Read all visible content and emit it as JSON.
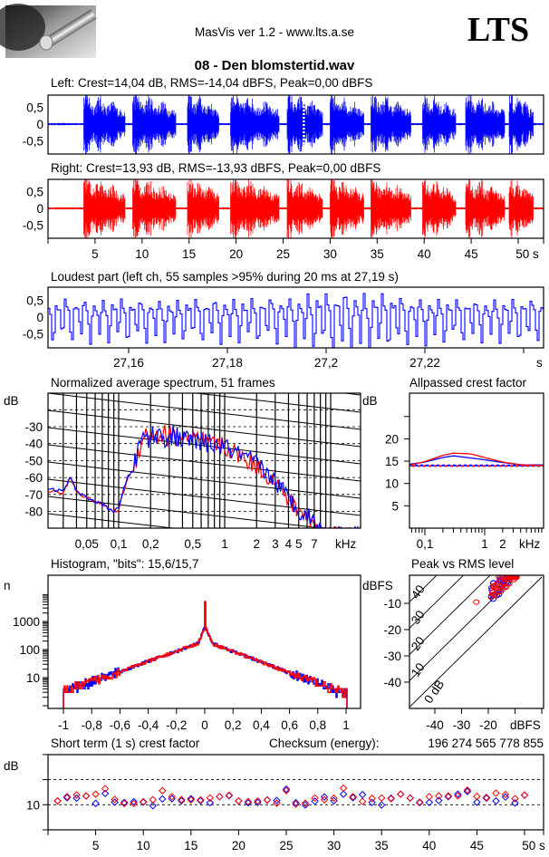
{
  "header": {
    "app_title": "MasVis ver 1.2 - www.lts.a.se",
    "brand": "LTS",
    "file_name": "08 - Den blomstertid.wav"
  },
  "colors": {
    "left": "#0000ff",
    "right": "#ff0000",
    "frame": "#000000"
  },
  "chart_data": [
    {
      "id": "left",
      "type": "line",
      "title": "Left: Crest=14,04 dB, RMS=-14,04 dBFS, Peak=0,00 dBFS",
      "yticks": [
        {
          "v": 0.5,
          "label": "0,5"
        },
        {
          "v": 0,
          "label": "0"
        },
        {
          "v": -0.5,
          "label": "-0,5"
        }
      ],
      "xlim": [
        0,
        52.7
      ],
      "ylim": [
        -1,
        1
      ],
      "loudest_marker_s": 27.19,
      "phrases_s": [
        [
          3.8,
          8.2
        ],
        [
          9,
          13.6
        ],
        [
          14.8,
          18.2
        ],
        [
          19.4,
          24.6
        ],
        [
          25.4,
          29.2
        ],
        [
          30,
          33.6
        ],
        [
          34.3,
          38.6
        ],
        [
          39.8,
          43.4
        ],
        [
          44.4,
          48.6
        ],
        [
          49,
          51.6
        ]
      ]
    },
    {
      "id": "right",
      "type": "line",
      "title": "Right: Crest=13,93 dB, RMS=-13,93 dBFS, Peak=0,00 dBFS",
      "yticks": [
        {
          "v": 0.5,
          "label": "0,5"
        },
        {
          "v": 0,
          "label": "0"
        },
        {
          "v": -0.5,
          "label": "-0,5"
        }
      ],
      "xticks": [
        {
          "v": 5,
          "label": "5"
        },
        {
          "v": 10,
          "label": "10"
        },
        {
          "v": 15,
          "label": "15"
        },
        {
          "v": 20,
          "label": "20"
        },
        {
          "v": 25,
          "label": "25"
        },
        {
          "v": 30,
          "label": "30"
        },
        {
          "v": 35,
          "label": "35"
        },
        {
          "v": 40,
          "label": "40"
        },
        {
          "v": 45,
          "label": "45"
        },
        {
          "v": 50,
          "label": "50 s"
        }
      ],
      "xlim": [
        0,
        52.7
      ],
      "ylim": [
        -1,
        1
      ]
    },
    {
      "id": "loudest",
      "type": "line",
      "title": "Loudest part (left  ch, 55 samples >95% during 20 ms at 27,19 s)",
      "yticks": [
        {
          "v": 0.5,
          "label": "0,5"
        },
        {
          "v": 0,
          "label": "0"
        },
        {
          "v": -0.5,
          "label": "-0,5"
        }
      ],
      "xticks": [
        {
          "v": 27.16,
          "label": "27,16"
        },
        {
          "v": 27.18,
          "label": "27,18"
        },
        {
          "v": 27.2,
          "label": "27,2"
        },
        {
          "v": 27.22,
          "label": "27,22"
        }
      ],
      "xunit": "s",
      "xlim": [
        27.144,
        27.244
      ],
      "ylim": [
        -1,
        1
      ]
    },
    {
      "id": "spectrum",
      "type": "line",
      "title": "Normalized average spectrum, 51 frames",
      "ylabel": "dB",
      "xunit": "kHz",
      "yticks": [
        {
          "v": -30,
          "label": "-30"
        },
        {
          "v": -40,
          "label": "-40"
        },
        {
          "v": -50,
          "label": "-50"
        },
        {
          "v": -60,
          "label": "-60"
        },
        {
          "v": -70,
          "label": "-70"
        },
        {
          "v": -80,
          "label": "-80"
        }
      ],
      "xticks": [
        {
          "v": 0.05,
          "label": "0,05"
        },
        {
          "v": 0.1,
          "label": "0,1"
        },
        {
          "v": 0.2,
          "label": "0,2"
        },
        {
          "v": 0.5,
          "label": "0,5"
        },
        {
          "v": 1,
          "label": "1"
        },
        {
          "v": 2,
          "label": "2"
        },
        {
          "v": 3,
          "label": "3"
        },
        {
          "v": 4,
          "label": "4"
        },
        {
          "v": 5,
          "label": "5"
        },
        {
          "v": 7,
          "label": "7"
        }
      ],
      "xscale": "log",
      "xlim": [
        0.0216,
        19
      ],
      "ylim": [
        -86,
        -10
      ],
      "series": [
        {
          "name": "left",
          "anchors": [
            [
              0.022,
              -67
            ],
            [
              0.03,
              -68
            ],
            [
              0.035,
              -60
            ],
            [
              0.04,
              -68
            ],
            [
              0.05,
              -72
            ],
            [
              0.07,
              -76
            ],
            [
              0.09,
              -80
            ],
            [
              0.1,
              -78
            ],
            [
              0.12,
              -60
            ],
            [
              0.14,
              -55
            ],
            [
              0.15,
              -45
            ],
            [
              0.17,
              -36
            ],
            [
              0.25,
              -35
            ],
            [
              0.5,
              -38
            ],
            [
              1,
              -42
            ],
            [
              2,
              -52
            ],
            [
              3,
              -62
            ],
            [
              4,
              -72
            ],
            [
              5,
              -79
            ],
            [
              7,
              -85
            ],
            [
              8,
              -90
            ],
            [
              19,
              -90
            ]
          ]
        },
        {
          "name": "right",
          "anchors": [
            [
              0.022,
              -68
            ],
            [
              0.03,
              -69
            ],
            [
              0.035,
              -60
            ],
            [
              0.04,
              -68
            ],
            [
              0.05,
              -72
            ],
            [
              0.07,
              -76
            ],
            [
              0.09,
              -80
            ],
            [
              0.1,
              -79
            ],
            [
              0.12,
              -61
            ],
            [
              0.14,
              -55
            ],
            [
              0.15,
              -45
            ],
            [
              0.17,
              -35
            ],
            [
              0.25,
              -35
            ],
            [
              0.5,
              -37
            ],
            [
              1,
              -42
            ],
            [
              2,
              -53
            ],
            [
              3,
              -63
            ],
            [
              4,
              -73
            ],
            [
              5,
              -80
            ],
            [
              7,
              -86
            ],
            [
              8,
              -90
            ],
            [
              19,
              -90
            ]
          ]
        }
      ]
    },
    {
      "id": "allpass",
      "type": "line",
      "title": "Allpassed crest factor",
      "ylabel": "dB",
      "xunit": "kHz",
      "yticks": [
        {
          "v": 20,
          "label": "20"
        },
        {
          "v": 15,
          "label": "15"
        },
        {
          "v": 10,
          "label": "10"
        },
        {
          "v": 5,
          "label": "5"
        }
      ],
      "xticks": [
        {
          "v": 0.1,
          "label": "0,1"
        },
        {
          "v": 1,
          "label": "1"
        },
        {
          "v": 2,
          "label": "2"
        }
      ],
      "xscale": "log",
      "xlim": [
        0.055,
        17
      ],
      "ylim": [
        0,
        30
      ],
      "series": [
        {
          "name": "left",
          "points": [
            [
              0.055,
              14.3
            ],
            [
              0.1,
              14.8
            ],
            [
              0.2,
              15.8
            ],
            [
              0.3,
              16.2
            ],
            [
              0.6,
              15.7
            ],
            [
              1,
              15.3
            ],
            [
              2,
              14.7
            ],
            [
              4,
              14.2
            ],
            [
              17,
              14.1
            ]
          ],
          "reference": 14.04
        },
        {
          "name": "right",
          "points": [
            [
              0.055,
              14.1
            ],
            [
              0.1,
              14.9
            ],
            [
              0.2,
              16.3
            ],
            [
              0.3,
              16.8
            ],
            [
              0.6,
              16.6
            ],
            [
              1,
              15.8
            ],
            [
              2,
              14.8
            ],
            [
              4,
              14.2
            ],
            [
              17,
              13.9
            ]
          ],
          "reference": 13.93
        }
      ]
    },
    {
      "id": "histogram",
      "type": "line",
      "title": "Histogram, \"bits\": 15,6/15,7",
      "ylabel": "n",
      "yscale": "log",
      "yticks": [
        {
          "v": 1000,
          "label": "1000"
        },
        {
          "v": 100,
          "label": "100"
        },
        {
          "v": 10,
          "label": "10"
        }
      ],
      "xticks": [
        {
          "v": -1,
          "label": "-1"
        },
        {
          "v": -0.8,
          "label": "-0,8"
        },
        {
          "v": -0.6,
          "label": "-0,6"
        },
        {
          "v": -0.4,
          "label": "-0,4"
        },
        {
          "v": -0.2,
          "label": "-0,2"
        },
        {
          "v": 0,
          "label": "0"
        },
        {
          "v": 0.2,
          "label": "0,2"
        },
        {
          "v": 0.4,
          "label": "0,4"
        },
        {
          "v": 0.6,
          "label": "0,6"
        },
        {
          "v": 0.8,
          "label": "0,8"
        },
        {
          "v": 1,
          "label": "1"
        }
      ],
      "xlim": [
        -1.1,
        1.1
      ],
      "peak_count_at_zero": 5000
    },
    {
      "id": "peak_vs_rms",
      "type": "scatter",
      "title": "Peak vs RMS level",
      "ylabel": "dBFS",
      "xunit": "dBFS",
      "yticks": [
        {
          "v": -10,
          "label": "-10"
        },
        {
          "v": -20,
          "label": "-20"
        },
        {
          "v": -30,
          "label": "-30"
        },
        {
          "v": -40,
          "label": "-40"
        }
      ],
      "xticks": [
        {
          "v": -40,
          "label": "-40"
        },
        {
          "v": -30,
          "label": "-30"
        },
        {
          "v": -20,
          "label": "-20"
        }
      ],
      "xlim": [
        -50,
        0
      ],
      "ylim": [
        -50,
        0
      ],
      "crest_lines": [
        {
          "v": 0,
          "label": "0 dB"
        },
        {
          "v": 10,
          "label": "10"
        },
        {
          "v": 20,
          "label": "20"
        },
        {
          "v": 30,
          "label": "30"
        },
        {
          "v": 40,
          "label": "40"
        }
      ],
      "rms_range": [
        -19,
        -9
      ],
      "crest_range": [
        9.5,
        16.5
      ]
    },
    {
      "id": "short_term_crest",
      "type": "scatter",
      "title": "Short term (1 s) crest factor",
      "checksum_label": "Checksum (energy):",
      "checksum_value": "196 274 565 778 855",
      "ylabel": "dB",
      "yticks": [
        {
          "v": 10,
          "label": "10"
        }
      ],
      "gridlines": [
        10,
        20
      ],
      "xticks": [
        {
          "v": 5,
          "label": "5"
        },
        {
          "v": 10,
          "label": "10"
        },
        {
          "v": 15,
          "label": "15"
        },
        {
          "v": 20,
          "label": "20"
        },
        {
          "v": 25,
          "label": "25"
        },
        {
          "v": 30,
          "label": "30"
        },
        {
          "v": 35,
          "label": "35"
        },
        {
          "v": 40,
          "label": "40"
        },
        {
          "v": 45,
          "label": "45"
        },
        {
          "v": 50,
          "label": "50 s"
        }
      ],
      "ylim": [
        0,
        30
      ],
      "x": [
        1,
        2,
        3,
        4,
        5,
        6,
        7,
        8,
        9,
        10,
        11,
        12,
        13,
        14,
        15,
        16,
        17,
        18,
        19,
        20,
        21,
        22,
        23,
        24,
        25,
        26,
        27,
        28,
        29,
        30,
        31,
        32,
        33,
        34,
        35,
        36,
        37,
        38,
        39,
        40,
        41,
        42,
        43,
        44,
        45,
        46,
        47,
        48,
        49,
        50
      ],
      "series": [
        {
          "name": "left",
          "values": [
            11.5,
            12.8,
            12.6,
            13.5,
            10.5,
            14.5,
            11,
            10.9,
            11.2,
            11,
            9.6,
            12.3,
            12.4,
            11.6,
            12.4,
            11.6,
            10.8,
            13.2,
            13.6,
            11.5,
            10.8,
            10.9,
            11.9,
            11.7,
            16.2,
            10.8,
            9.9,
            11.4,
            13.1,
            11.6,
            14.2,
            12.8,
            14,
            10.9,
            9.9,
            12.6,
            14.2,
            12.7,
            11,
            10.9,
            11.7,
            13.2,
            14.2,
            15.3,
            11,
            12.6,
            11.5,
            13.1,
            10.7,
            13.8
          ]
        },
        {
          "name": "right",
          "values": [
            11.5,
            13.2,
            13.9,
            13.5,
            14.2,
            16.4,
            12.1,
            10.5,
            10.5,
            11.2,
            12,
            15.6,
            13.2,
            12,
            11.9,
            11.9,
            12.7,
            13.2,
            13.8,
            11.5,
            11.2,
            11.5,
            11.9,
            10.6,
            15.6,
            10.2,
            10.6,
            12.7,
            12,
            12.6,
            16.6,
            13.2,
            11.3,
            12.5,
            12.7,
            12.4,
            14.2,
            12.7,
            10.8,
            13.2,
            13.5,
            13.5,
            13.5,
            15.8,
            13.3,
            12.9,
            14.6,
            14.1,
            12.4,
            13.8
          ]
        }
      ]
    }
  ]
}
